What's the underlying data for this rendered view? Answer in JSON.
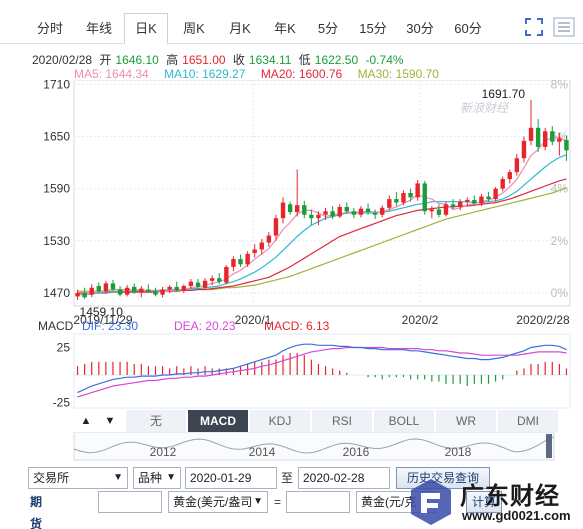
{
  "tabs": [
    {
      "label": "分时",
      "name": "tab-intraday",
      "active": false
    },
    {
      "label": "年线",
      "name": "tab-yearly",
      "active": false
    },
    {
      "label": "日K",
      "name": "tab-daily-k",
      "active": true
    },
    {
      "label": "周K",
      "name": "tab-weekly-k",
      "active": false
    },
    {
      "label": "月K",
      "name": "tab-monthly-k",
      "active": false
    },
    {
      "label": "年K",
      "name": "tab-yearly-k",
      "active": false
    },
    {
      "label": "5分",
      "name": "tab-5min",
      "active": false
    },
    {
      "label": "15分",
      "name": "tab-15min",
      "active": false
    },
    {
      "label": "30分",
      "name": "tab-30min",
      "active": false
    },
    {
      "label": "60分",
      "name": "tab-60min",
      "active": false
    }
  ],
  "quote": {
    "date": "2020/02/28",
    "open_label": "开",
    "open": "1646.10",
    "high_label": "高",
    "high": "1651.00",
    "close_label": "收",
    "close": "1634.11",
    "low_label": "低",
    "low": "1622.50",
    "change": "-0.74%"
  },
  "ma_legend": {
    "ma5": "MA5: 1644.34",
    "ma10": "MA10: 1629.27",
    "ma20": "MA20: 1600.76",
    "ma30": "MA30: 1590.70"
  },
  "colors": {
    "up": "#e5262c",
    "down": "#1a9e3a",
    "ma5": "#f08cb0",
    "ma10": "#2fb9d1",
    "ma20": "#e0283d",
    "ma30": "#9cb43a",
    "dif": "#3a6fe0",
    "dea": "#d648d6",
    "macd": "#e5262c"
  },
  "price_axis": {
    "ticks": [
      "1710",
      "1650",
      "1590",
      "1530",
      "1470"
    ],
    "pct_ticks": [
      "8%",
      "6%",
      "4%",
      "2%",
      "0%"
    ]
  },
  "annotations": {
    "max": "1691.70",
    "min": "1459.10"
  },
  "date_axis": [
    "2019/11/29",
    "2020/1",
    "2020/2",
    "2020/2/28"
  ],
  "watermark_sina": "新浪财经",
  "macd": {
    "label": "MACD",
    "dif": "DIF: 23.30",
    "dea": "DEA: 20.23",
    "macd": "MACD: 6.13",
    "ticks": [
      "25",
      "-25"
    ]
  },
  "indicator_tabs": [
    "无",
    "MACD",
    "KDJ",
    "RSI",
    "BOLL",
    "WR",
    "DMI"
  ],
  "indicator_active": "MACD",
  "overview_years": [
    "2012",
    "2014",
    "2016",
    "2018"
  ],
  "form": {
    "exchange": "交易所",
    "variety": "品种",
    "start_date": "2020-01-29",
    "to_label": "至",
    "end_date": "2020-02-28",
    "history_button": "历史交易查询",
    "calc_title": "期货计算器",
    "unit1": "黄金(美元/盎司",
    "equals": "=",
    "unit2": "黄金(元/克",
    "calc_button": "计算"
  },
  "site_watermark": {
    "text": "广东财经",
    "url": "www.gd0021.com"
  },
  "chart_data": {
    "type": "candlestick",
    "y_range": [
      1455,
      1715
    ],
    "candles": [
      [
        1466,
        1474,
        1462,
        1470
      ],
      [
        1470,
        1476,
        1463,
        1465
      ],
      [
        1468,
        1480,
        1465,
        1476
      ],
      [
        1478,
        1482,
        1470,
        1472
      ],
      [
        1472,
        1484,
        1470,
        1481
      ],
      [
        1481,
        1485,
        1472,
        1474
      ],
      [
        1474,
        1478,
        1466,
        1468
      ],
      [
        1468,
        1479,
        1466,
        1476
      ],
      [
        1477,
        1481,
        1469,
        1471
      ],
      [
        1471,
        1478,
        1465,
        1475
      ],
      [
        1474,
        1480,
        1470,
        1472
      ],
      [
        1472,
        1476,
        1466,
        1468
      ],
      [
        1468,
        1477,
        1465,
        1474
      ],
      [
        1474,
        1479,
        1470,
        1477
      ],
      [
        1477,
        1483,
        1471,
        1473
      ],
      [
        1473,
        1480,
        1470,
        1478
      ],
      [
        1478,
        1486,
        1475,
        1483
      ],
      [
        1482,
        1486,
        1474,
        1477
      ],
      [
        1476,
        1487,
        1474,
        1484
      ],
      [
        1484,
        1490,
        1479,
        1487
      ],
      [
        1487,
        1493,
        1480,
        1483
      ],
      [
        1482,
        1502,
        1480,
        1500
      ],
      [
        1500,
        1512,
        1495,
        1509
      ],
      [
        1509,
        1514,
        1500,
        1503
      ],
      [
        1503,
        1518,
        1500,
        1515
      ],
      [
        1516,
        1526,
        1511,
        1520
      ],
      [
        1520,
        1532,
        1514,
        1528
      ],
      [
        1528,
        1540,
        1523,
        1536
      ],
      [
        1536,
        1560,
        1530,
        1556
      ],
      [
        1556,
        1580,
        1550,
        1574
      ],
      [
        1572,
        1575,
        1560,
        1563
      ],
      [
        1563,
        1612,
        1558,
        1571
      ],
      [
        1571,
        1576,
        1556,
        1560
      ],
      [
        1560,
        1566,
        1548,
        1556
      ],
      [
        1556,
        1564,
        1548,
        1560
      ],
      [
        1560,
        1568,
        1554,
        1564
      ],
      [
        1564,
        1570,
        1555,
        1558
      ],
      [
        1558,
        1572,
        1556,
        1569
      ],
      [
        1569,
        1574,
        1561,
        1564
      ],
      [
        1564,
        1568,
        1556,
        1560
      ],
      [
        1560,
        1570,
        1557,
        1567
      ],
      [
        1567,
        1573,
        1560,
        1563
      ],
      [
        1562,
        1566,
        1555,
        1560
      ],
      [
        1560,
        1571,
        1557,
        1568
      ],
      [
        1568,
        1582,
        1565,
        1578
      ],
      [
        1578,
        1586,
        1570,
        1574
      ],
      [
        1574,
        1588,
        1571,
        1585
      ],
      [
        1585,
        1590,
        1575,
        1580
      ],
      [
        1580,
        1600,
        1576,
        1596
      ],
      [
        1596,
        1599,
        1560,
        1564
      ],
      [
        1564,
        1570,
        1556,
        1566
      ],
      [
        1566,
        1572,
        1557,
        1560
      ],
      [
        1560,
        1575,
        1558,
        1572
      ],
      [
        1572,
        1578,
        1566,
        1569
      ],
      [
        1569,
        1578,
        1565,
        1575
      ],
      [
        1575,
        1580,
        1570,
        1577
      ],
      [
        1577,
        1582,
        1570,
        1573
      ],
      [
        1573,
        1584,
        1570,
        1581
      ],
      [
        1581,
        1586,
        1575,
        1578
      ],
      [
        1578,
        1592,
        1575,
        1590
      ],
      [
        1590,
        1604,
        1587,
        1601
      ],
      [
        1601,
        1612,
        1596,
        1609
      ],
      [
        1609,
        1630,
        1605,
        1625
      ],
      [
        1625,
        1650,
        1620,
        1645
      ],
      [
        1645,
        1692,
        1640,
        1660
      ],
      [
        1660,
        1670,
        1632,
        1638
      ],
      [
        1638,
        1660,
        1634,
        1656
      ],
      [
        1656,
        1662,
        1640,
        1644
      ],
      [
        1644,
        1654,
        1628,
        1648
      ],
      [
        1646,
        1651,
        1622,
        1634
      ]
    ],
    "ma5": [
      1468,
      1469,
      1470,
      1471,
      1473,
      1474,
      1474,
      1474,
      1474,
      1473,
      1473,
      1472,
      1472,
      1473,
      1473,
      1474,
      1476,
      1477,
      1479,
      1481,
      1483,
      1486,
      1492,
      1496,
      1502,
      1509,
      1515,
      1521,
      1531,
      1543,
      1551,
      1561,
      1565,
      1565,
      1562,
      1558,
      1560,
      1561,
      1563,
      1563,
      1563,
      1564,
      1563,
      1563,
      1566,
      1569,
      1573,
      1577,
      1583,
      1580,
      1578,
      1573,
      1572,
      1566,
      1568,
      1571,
      1573,
      1575,
      1577,
      1580,
      1585,
      1592,
      1601,
      1614,
      1628,
      1635,
      1645,
      1649,
      1649,
      1644
    ],
    "ma10": [
      1468,
      1468,
      1469,
      1470,
      1471,
      1471,
      1472,
      1472,
      1472,
      1473,
      1473,
      1473,
      1473,
      1474,
      1474,
      1474,
      1475,
      1475,
      1476,
      1477,
      1478,
      1481,
      1483,
      1486,
      1490,
      1494,
      1499,
      1505,
      1511,
      1519,
      1527,
      1535,
      1542,
      1548,
      1552,
      1556,
      1558,
      1560,
      1562,
      1562,
      1562,
      1562,
      1562,
      1563,
      1564,
      1566,
      1568,
      1570,
      1572,
      1573,
      1575,
      1575,
      1575,
      1575,
      1575,
      1575,
      1574,
      1574,
      1575,
      1576,
      1578,
      1582,
      1587,
      1594,
      1601,
      1608,
      1615,
      1621,
      1626,
      1629
    ],
    "ma20": [
      1470,
      1470,
      1470,
      1470,
      1470,
      1471,
      1471,
      1471,
      1471,
      1471,
      1471,
      1471,
      1472,
      1472,
      1472,
      1473,
      1473,
      1474,
      1474,
      1475,
      1476,
      1477,
      1478,
      1480,
      1482,
      1484,
      1486,
      1488,
      1492,
      1496,
      1500,
      1505,
      1510,
      1515,
      1520,
      1525,
      1530,
      1535,
      1538,
      1541,
      1544,
      1547,
      1550,
      1553,
      1556,
      1559,
      1561,
      1563,
      1565,
      1566,
      1567,
      1568,
      1569,
      1569,
      1570,
      1570,
      1571,
      1572,
      1573,
      1574,
      1576,
      1578,
      1581,
      1584,
      1587,
      1590,
      1593,
      1596,
      1599,
      1601
    ],
    "ma30": [
      1472,
      1472,
      1472,
      1472,
      1472,
      1472,
      1472,
      1472,
      1472,
      1472,
      1472,
      1472,
      1472,
      1473,
      1473,
      1473,
      1473,
      1474,
      1474,
      1474,
      1475,
      1476,
      1476,
      1477,
      1478,
      1479,
      1481,
      1483,
      1485,
      1487,
      1489,
      1492,
      1495,
      1498,
      1501,
      1504,
      1507,
      1510,
      1513,
      1516,
      1519,
      1522,
      1525,
      1528,
      1531,
      1534,
      1537,
      1540,
      1543,
      1546,
      1549,
      1552,
      1555,
      1557,
      1559,
      1561,
      1563,
      1565,
      1567,
      1569,
      1571,
      1573,
      1575,
      1577,
      1579,
      1581,
      1583,
      1585,
      1588,
      1591
    ],
    "macd_range": [
      -30,
      30
    ],
    "dif": [
      -16,
      -13,
      -10,
      -8,
      -6,
      -4,
      -3,
      -2,
      -2,
      -1,
      -1,
      -1,
      0,
      0,
      1,
      1,
      2,
      2,
      3,
      3,
      4,
      5,
      6,
      8,
      10,
      12,
      14,
      16,
      18,
      22,
      25,
      27,
      28,
      28,
      27,
      27,
      27,
      26,
      26,
      25,
      25,
      24,
      24,
      23,
      23,
      23,
      23,
      22,
      22,
      21,
      20,
      19,
      18,
      17,
      16,
      15,
      15,
      14,
      14,
      15,
      16,
      18,
      20,
      22,
      25,
      26,
      27,
      27,
      26,
      23
    ],
    "dea": [
      -20,
      -18,
      -16,
      -14,
      -12,
      -10,
      -9,
      -8,
      -7,
      -6,
      -5,
      -5,
      -4,
      -3,
      -3,
      -2,
      -2,
      -1,
      -1,
      0,
      1,
      2,
      3,
      4,
      5,
      6,
      8,
      9,
      11,
      13,
      15,
      17,
      19,
      21,
      22,
      23,
      24,
      24,
      25,
      25,
      25,
      25,
      25,
      25,
      24,
      24,
      24,
      24,
      24,
      23,
      23,
      22,
      22,
      21,
      20,
      20,
      19,
      18,
      18,
      18,
      18,
      18,
      18,
      19,
      20,
      21,
      21,
      21,
      21,
      20
    ],
    "macd": [
      8,
      10,
      12,
      12,
      12,
      12,
      12,
      12,
      10,
      10,
      8,
      8,
      8,
      6,
      8,
      6,
      8,
      6,
      8,
      6,
      6,
      6,
      6,
      8,
      10,
      12,
      12,
      14,
      14,
      18,
      20,
      20,
      18,
      14,
      10,
      8,
      6,
      4,
      2,
      0,
      0,
      -2,
      -2,
      -4,
      -2,
      -2,
      -2,
      -4,
      -4,
      -4,
      -6,
      -6,
      -8,
      -8,
      -8,
      -10,
      -8,
      -8,
      -8,
      -6,
      -4,
      0,
      4,
      6,
      10,
      10,
      12,
      12,
      10,
      6
    ]
  }
}
